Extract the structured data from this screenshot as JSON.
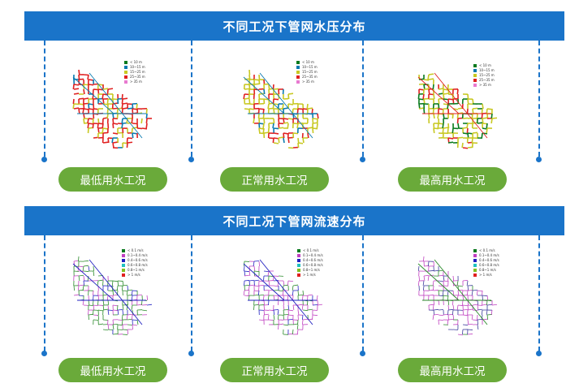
{
  "sections": [
    {
      "title": "不同工况下管网水压分布",
      "legend": [
        "< 10 m",
        "10~15 m",
        "15~25 m",
        "25~35 m",
        "> 35 m"
      ],
      "legend_colors": [
        "#0a7a1e",
        "#0a7ab0",
        "#c8c822",
        "#e02020",
        "#e87ad0"
      ],
      "panels": [
        {
          "label": "最低用水工况",
          "dominant": "#e02020",
          "secondary": "#c8c822",
          "accent": "#0a7ab0"
        },
        {
          "label": "正常用水工况",
          "dominant": "#c8c822",
          "secondary": "#e02020",
          "accent": "#0a7ab0"
        },
        {
          "label": "最高用水工况",
          "dominant": "#c8c822",
          "secondary": "#0a7a1e",
          "accent": "#e02020"
        }
      ]
    },
    {
      "title": "不同工况下管网流速分布",
      "legend": [
        "< 0.1 m/s",
        "0.1~0.4 m/s",
        "0.4~0.6 m/s",
        "0.6~0.8 m/s",
        "0.8~1 m/s",
        "> 1 m/s"
      ],
      "legend_colors": [
        "#0a7a1e",
        "#c040c0",
        "#2020c0",
        "#20c0c0",
        "#80c020",
        "#e02020"
      ],
      "panels": [
        {
          "label": "最低用水工况",
          "dominant": "#2a8a2a",
          "secondary": "#c040c0",
          "accent": "#2020c0"
        },
        {
          "label": "正常用水工况",
          "dominant": "#c040c0",
          "secondary": "#2a8a2a",
          "accent": "#2020c0"
        },
        {
          "label": "最高用水工况",
          "dominant": "#c040c0",
          "secondary": "#3a3a9a",
          "accent": "#2a8a2a"
        }
      ]
    }
  ]
}
